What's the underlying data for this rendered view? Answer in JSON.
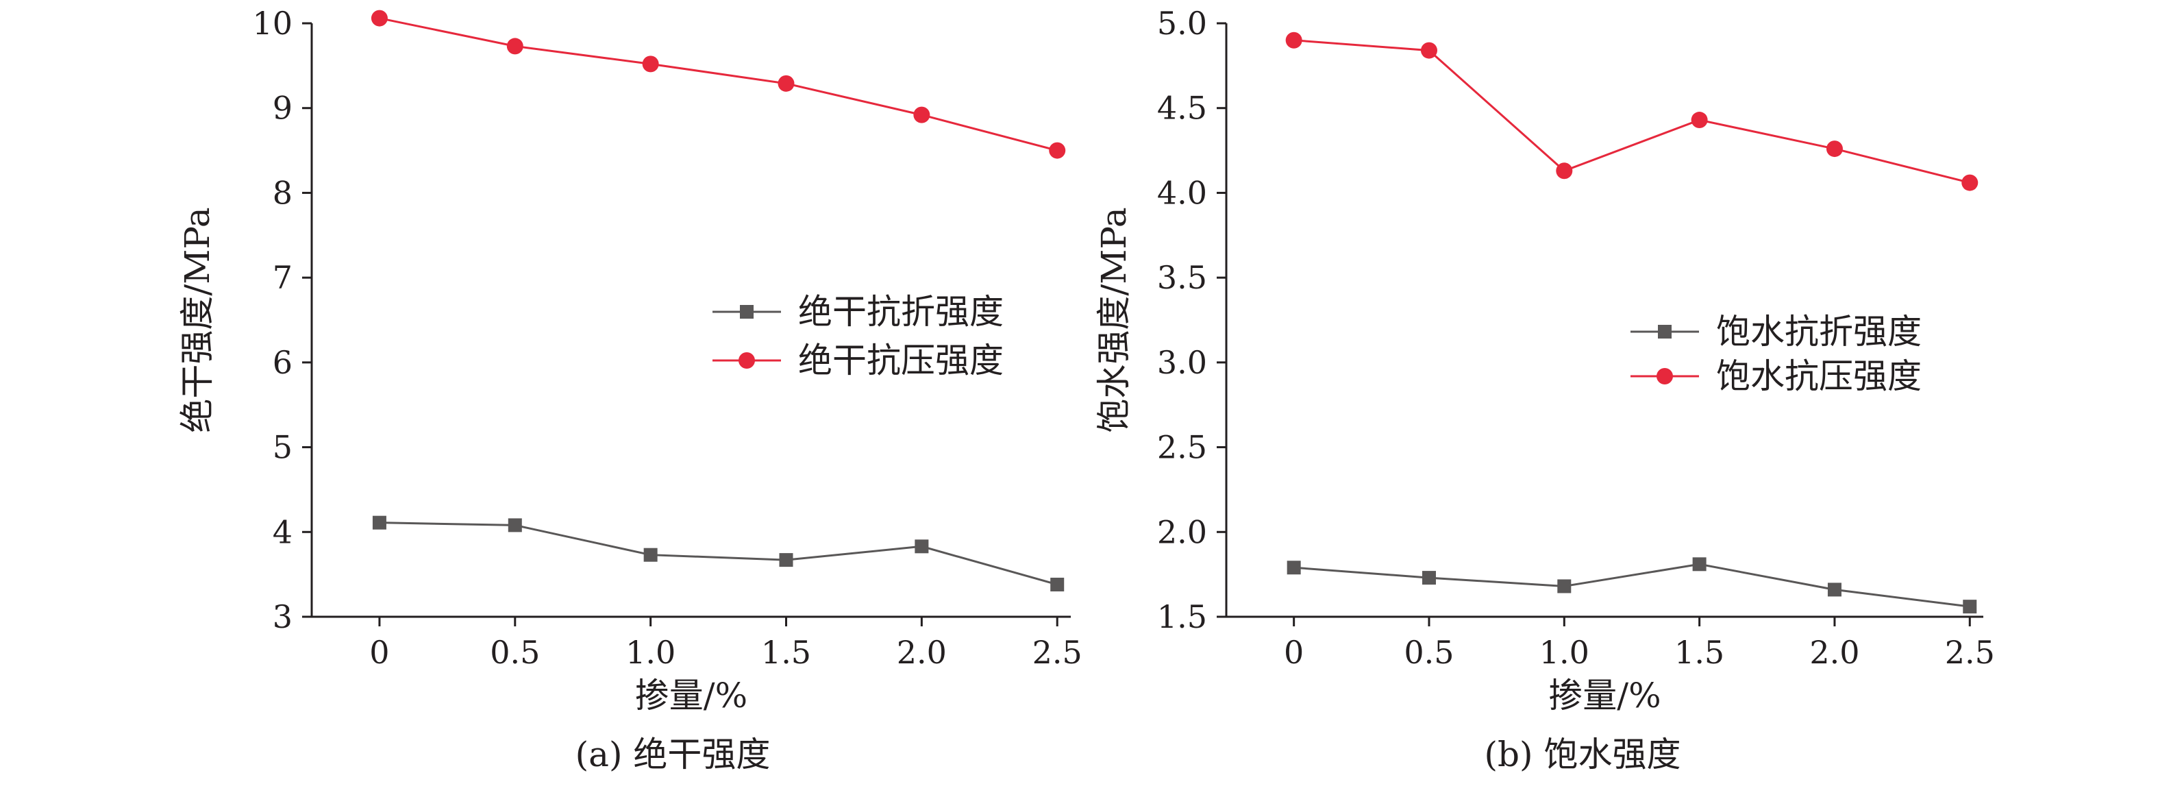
{
  "chart_data": [
    {
      "type": "line",
      "caption": "(a) 绝干强度",
      "xlabel": "掺量/%",
      "ylabel": "绝干强度/MPa",
      "x": [
        0,
        0.5,
        1.0,
        1.5,
        2.0,
        2.5
      ],
      "x_tick_labels": [
        "0",
        "0.5",
        "1.0",
        "1.5",
        "2.0",
        "2.5"
      ],
      "xlim": [
        -0.25,
        2.55
      ],
      "ylim": [
        3,
        10
      ],
      "y_ticks": [
        3,
        4,
        5,
        6,
        7,
        8,
        9,
        10
      ],
      "y_tick_labels": [
        "3",
        "4",
        "5",
        "6",
        "7",
        "8",
        "9",
        "10"
      ],
      "grid": false,
      "legend_position": "center-right",
      "series": [
        {
          "name": "绝干抗折强度",
          "marker": "square",
          "color": "#595757",
          "values": [
            4.11,
            4.08,
            3.73,
            3.67,
            3.83,
            3.38
          ]
        },
        {
          "name": "绝干抗压强度",
          "marker": "circle",
          "color": "#e6283c",
          "values": [
            10.06,
            9.73,
            9.52,
            9.29,
            8.92,
            8.5
          ]
        }
      ]
    },
    {
      "type": "line",
      "caption": "(b) 饱水强度",
      "xlabel": "掺量/%",
      "ylabel": "饱水强度/MPa",
      "x": [
        0,
        0.5,
        1.0,
        1.5,
        2.0,
        2.5
      ],
      "x_tick_labels": [
        "0",
        "0.5",
        "1.0",
        "1.5",
        "2.0",
        "2.5"
      ],
      "xlim": [
        -0.25,
        2.55
      ],
      "ylim": [
        1.5,
        5.0
      ],
      "y_ticks": [
        1.5,
        2.0,
        2.5,
        3.0,
        3.5,
        4.0,
        4.5,
        5.0
      ],
      "y_tick_labels": [
        "1.5",
        "2.0",
        "2.5",
        "3.0",
        "3.5",
        "4.0",
        "4.5",
        "5.0"
      ],
      "grid": false,
      "legend_position": "center-right",
      "series": [
        {
          "name": "饱水抗折强度",
          "marker": "square",
          "color": "#595757",
          "values": [
            1.79,
            1.73,
            1.68,
            1.81,
            1.66,
            1.56
          ]
        },
        {
          "name": "饱水抗压强度",
          "marker": "circle",
          "color": "#e6283c",
          "values": [
            4.9,
            4.84,
            4.13,
            4.43,
            4.26,
            4.06
          ]
        }
      ]
    }
  ]
}
